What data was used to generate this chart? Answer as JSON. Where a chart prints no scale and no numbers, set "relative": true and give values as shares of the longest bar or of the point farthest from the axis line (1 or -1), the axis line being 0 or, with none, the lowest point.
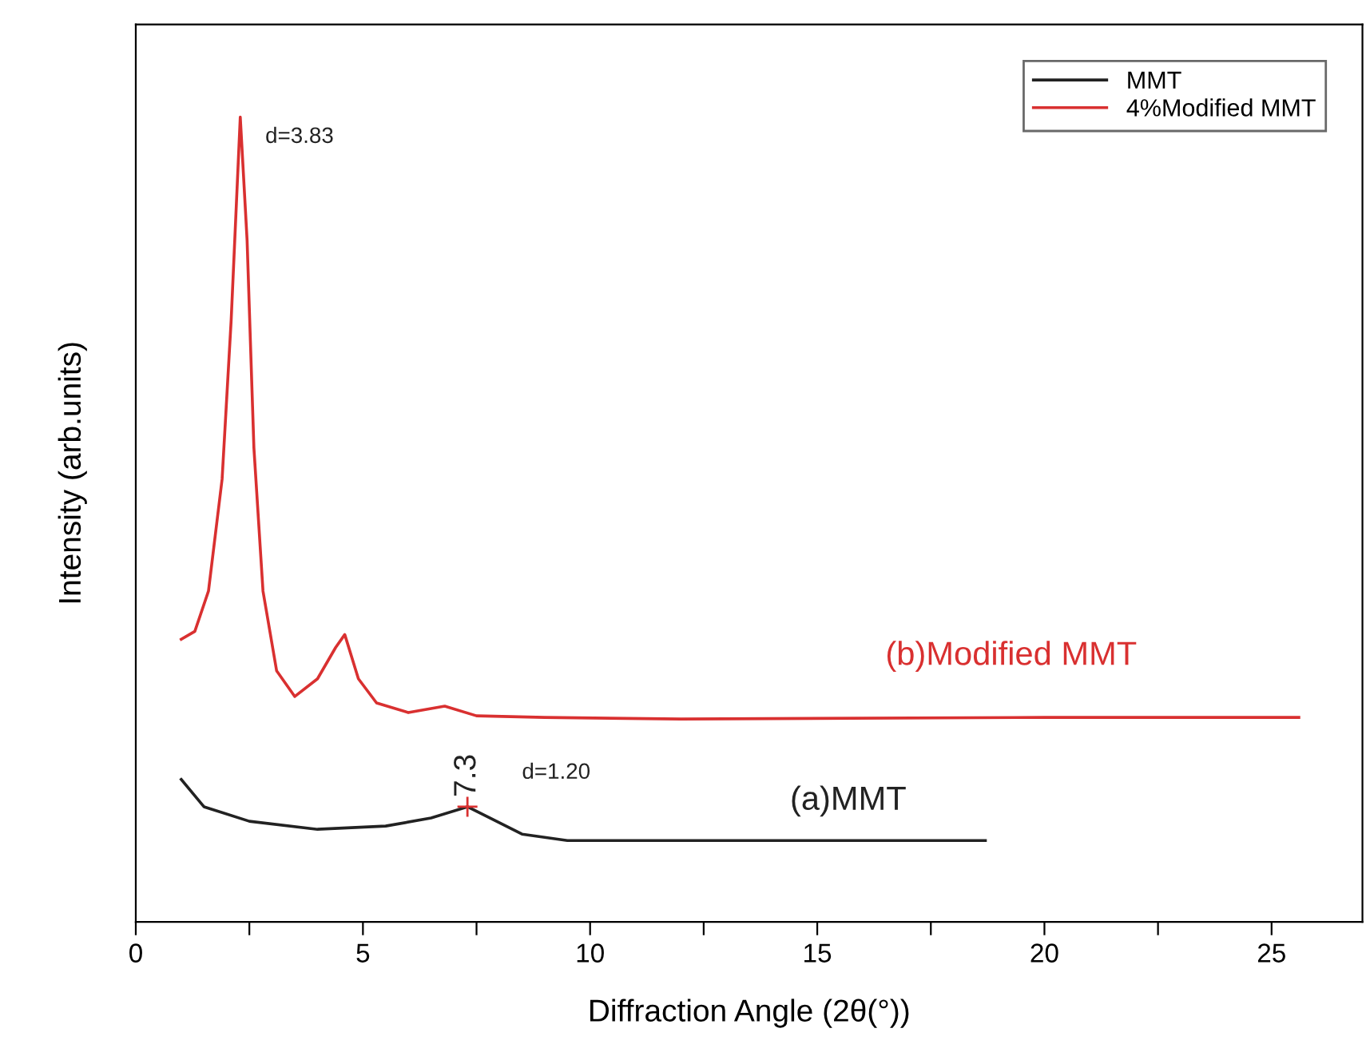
{
  "chart_data": {
    "type": "line",
    "relative": true,
    "xlabel": "Diffraction Angle (2θ(°))",
    "ylabel": "Intensity (arb.units)",
    "xlim": [
      0,
      27
    ],
    "xticks": [
      0,
      {
        "value": 2.5,
        "label": null
      },
      5,
      {
        "value": 7.5,
        "label": null
      },
      10,
      {
        "value": 12.5,
        "label": null
      },
      15,
      {
        "value": 17.5,
        "label": null
      },
      20,
      {
        "value": 22.5,
        "label": null
      },
      25
    ],
    "legend": "top right",
    "grid": false,
    "marker": "none",
    "line_style": "solid",
    "series": [
      {
        "name": "MMT",
        "color": "#222222",
        "x": [
          1.0,
          1.5,
          2.5,
          4.0,
          5.5,
          6.5,
          7.3,
          7.8,
          8.5,
          9.5,
          12,
          18.7
        ],
        "values": [
          0.177,
          0.143,
          0.125,
          0.115,
          0.119,
          0.129,
          0.143,
          0.129,
          0.109,
          0.101,
          0.101,
          0.101
        ]
      },
      {
        "name": "4%Modified MMT",
        "color": "#d93030",
        "x": [
          1.0,
          1.3,
          1.6,
          1.9,
          2.1,
          2.3,
          2.45,
          2.6,
          2.8,
          3.1,
          3.5,
          4.0,
          4.4,
          4.6,
          4.9,
          5.3,
          6.0,
          6.8,
          7.5,
          9,
          12,
          20,
          25.6
        ],
        "values": [
          0.351,
          0.361,
          0.411,
          0.55,
          0.748,
          1.0,
          0.847,
          0.589,
          0.411,
          0.312,
          0.28,
          0.302,
          0.341,
          0.357,
          0.302,
          0.272,
          0.26,
          0.268,
          0.256,
          0.254,
          0.252,
          0.254,
          0.254
        ]
      }
    ],
    "annotations": [
      "d=3.83",
      {
        "text": "7.3",
        "x": 7.3,
        "y": 0.143
      },
      "d=1.20",
      "(b)Modified MMT",
      "(a)MMT"
    ]
  }
}
